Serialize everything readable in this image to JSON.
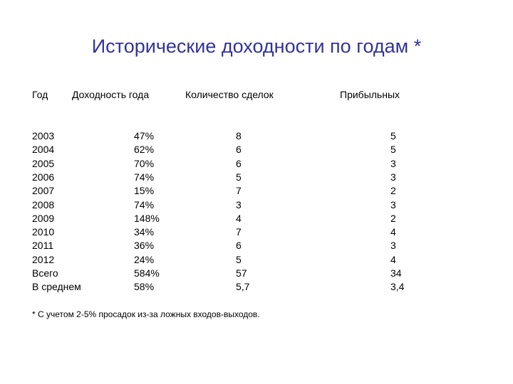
{
  "title": "Исторические доходности по годам *",
  "table": {
    "headers": [
      "Год",
      "Доходность года",
      "Количество сделок",
      "Прибыльных"
    ],
    "rows": [
      [
        "2003",
        "47%",
        "8",
        "5"
      ],
      [
        "2004",
        "62%",
        "6",
        "5"
      ],
      [
        "2005",
        "70%",
        "6",
        "3"
      ],
      [
        "2006",
        "74%",
        "5",
        "3"
      ],
      [
        "2007",
        "15%",
        "7",
        "2"
      ],
      [
        "2008",
        "74%",
        "3",
        "3"
      ],
      [
        "2009",
        "148%",
        "4",
        "2"
      ],
      [
        "2010",
        "34%",
        "7",
        "4"
      ],
      [
        "2011",
        "36%",
        "6",
        "3"
      ],
      [
        "2012",
        "24%",
        "5",
        "4"
      ],
      [
        "Всего",
        "584%",
        "57",
        "34"
      ],
      [
        "В среднем",
        "58%",
        "5,7",
        "3,4"
      ]
    ]
  },
  "footnote": "* С учетом 2-5% просадок из-за ложных входов-выходов."
}
